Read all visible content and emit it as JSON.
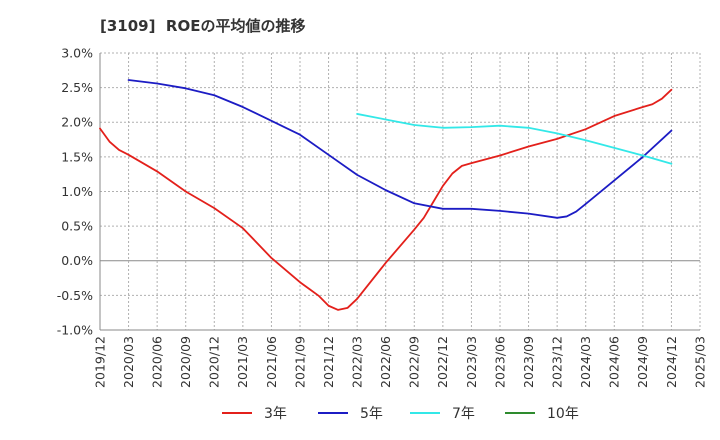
{
  "chart_data": {
    "type": "line",
    "title": "[3109]  ROEの平均値の推移",
    "xlabel": "",
    "ylabel": "",
    "x_range": [
      "2019/12",
      "2025/03"
    ],
    "x_tick_labels": [
      "2019/12",
      "2020/03",
      "2020/06",
      "2020/09",
      "2020/12",
      "2021/03",
      "2021/06",
      "2021/09",
      "2021/12",
      "2022/03",
      "2022/06",
      "2022/09",
      "2022/12",
      "2023/03",
      "2023/06",
      "2023/09",
      "2023/12",
      "2024/03",
      "2024/06",
      "2024/09",
      "2024/12",
      "2025/03"
    ],
    "ylim": [
      -1.0,
      3.0
    ],
    "y_ticks": [
      {
        "value": 3.0,
        "label": "3.0%"
      },
      {
        "value": 2.5,
        "label": "2.5%"
      },
      {
        "value": 2.0,
        "label": "2.0%"
      },
      {
        "value": 1.5,
        "label": "1.5%"
      },
      {
        "value": 1.0,
        "label": "1.0%"
      },
      {
        "value": 0.5,
        "label": "0.5%"
      },
      {
        "value": 0.0,
        "label": "0.0%"
      },
      {
        "value": -0.5,
        "label": "-0.5%"
      },
      {
        "value": -1.0,
        "label": "-1.0%"
      }
    ],
    "grid": true,
    "legend_position": "bottom",
    "series": [
      {
        "name": "3年",
        "color": "#e3201b",
        "points": [
          [
            "2019/12",
            1.91
          ],
          [
            "2020/01",
            1.72
          ],
          [
            "2020/02",
            1.6
          ],
          [
            "2020/03",
            1.53
          ],
          [
            "2020/06",
            1.29
          ],
          [
            "2020/09",
            1.0
          ],
          [
            "2020/12",
            0.76
          ],
          [
            "2021/03",
            0.47
          ],
          [
            "2021/06",
            0.04
          ],
          [
            "2021/09",
            -0.31
          ],
          [
            "2021/10",
            -0.41
          ],
          [
            "2021/11",
            -0.51
          ],
          [
            "2021/12",
            -0.65
          ],
          [
            "2022/01",
            -0.71
          ],
          [
            "2022/02",
            -0.68
          ],
          [
            "2022/03",
            -0.55
          ],
          [
            "2022/06",
            -0.03
          ],
          [
            "2022/09",
            0.45
          ],
          [
            "2022/10",
            0.62
          ],
          [
            "2022/11",
            0.85
          ],
          [
            "2022/12",
            1.08
          ],
          [
            "2023/01",
            1.26
          ],
          [
            "2023/02",
            1.37
          ],
          [
            "2023/03",
            1.41
          ],
          [
            "2023/06",
            1.52
          ],
          [
            "2023/09",
            1.65
          ],
          [
            "2023/12",
            1.76
          ],
          [
            "2024/03",
            1.9
          ],
          [
            "2024/06",
            2.09
          ],
          [
            "2024/09",
            2.22
          ],
          [
            "2024/10",
            2.26
          ],
          [
            "2024/11",
            2.34
          ],
          [
            "2024/12",
            2.47
          ]
        ]
      },
      {
        "name": "5年",
        "color": "#1c1cc4",
        "points": [
          [
            "2020/03",
            2.61
          ],
          [
            "2020/06",
            2.56
          ],
          [
            "2020/09",
            2.49
          ],
          [
            "2020/12",
            2.39
          ],
          [
            "2021/03",
            2.22
          ],
          [
            "2021/06",
            2.02
          ],
          [
            "2021/09",
            1.82
          ],
          [
            "2021/12",
            1.53
          ],
          [
            "2022/03",
            1.24
          ],
          [
            "2022/06",
            1.02
          ],
          [
            "2022/09",
            0.83
          ],
          [
            "2022/12",
            0.75
          ],
          [
            "2023/03",
            0.75
          ],
          [
            "2023/06",
            0.72
          ],
          [
            "2023/09",
            0.68
          ],
          [
            "2023/12",
            0.62
          ],
          [
            "2024/01",
            0.64
          ],
          [
            "2024/02",
            0.71
          ],
          [
            "2024/03",
            0.82
          ],
          [
            "2024/06",
            1.16
          ],
          [
            "2024/09",
            1.5
          ],
          [
            "2024/12",
            1.88
          ]
        ]
      },
      {
        "name": "7年",
        "color": "#33e8e8",
        "points": [
          [
            "2022/03",
            2.12
          ],
          [
            "2022/06",
            2.04
          ],
          [
            "2022/09",
            1.96
          ],
          [
            "2022/12",
            1.92
          ],
          [
            "2023/03",
            1.93
          ],
          [
            "2023/06",
            1.95
          ],
          [
            "2023/09",
            1.92
          ],
          [
            "2023/12",
            1.84
          ],
          [
            "2024/03",
            1.74
          ],
          [
            "2024/06",
            1.63
          ],
          [
            "2024/09",
            1.52
          ],
          [
            "2024/12",
            1.4
          ]
        ]
      },
      {
        "name": "10年",
        "color": "#2e8b2e",
        "points": []
      }
    ]
  }
}
